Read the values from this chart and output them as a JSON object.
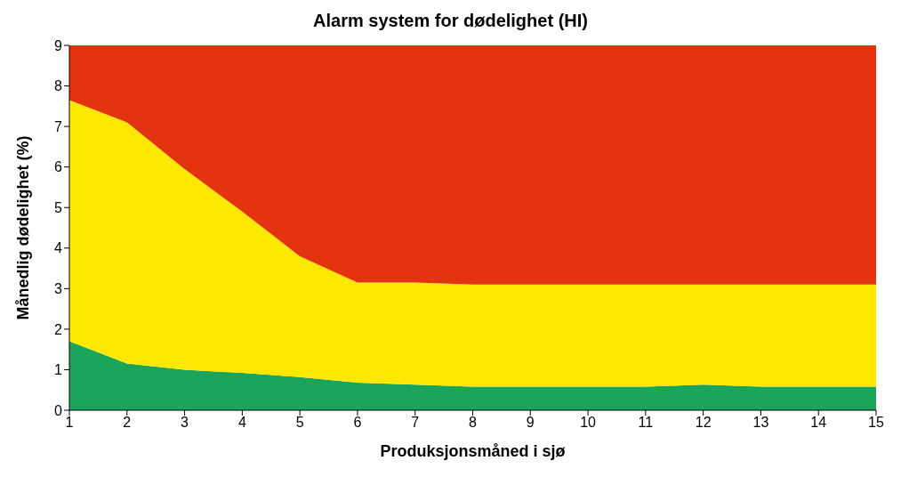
{
  "chart_data": {
    "type": "area",
    "title": "Alarm system for dødelighet (HI)",
    "xlabel": "Produksjonsmåned i sjø",
    "ylabel": "Månedlig dødelighet (%)",
    "x": [
      1,
      2,
      3,
      4,
      5,
      6,
      7,
      8,
      9,
      10,
      11,
      12,
      13,
      14,
      15
    ],
    "stacked": true,
    "series": [
      {
        "color": "#1aa55a",
        "values": [
          1.7,
          1.15,
          1.0,
          0.92,
          0.82,
          0.68,
          0.63,
          0.58,
          0.58,
          0.58,
          0.58,
          0.63,
          0.58,
          0.58,
          0.58
        ]
      },
      {
        "color": "#ffe800",
        "values": [
          5.95,
          5.95,
          4.95,
          3.98,
          2.98,
          2.47,
          2.52,
          2.52,
          2.52,
          2.52,
          2.52,
          2.47,
          2.52,
          2.52,
          2.52
        ]
      },
      {
        "color": "#e3340f",
        "values": [
          1.35,
          1.9,
          3.05,
          4.1,
          5.2,
          5.85,
          5.85,
          5.9,
          5.9,
          5.9,
          5.9,
          5.9,
          5.9,
          5.9,
          5.9
        ]
      }
    ],
    "xlim": [
      1,
      15
    ],
    "xticks": [
      1,
      2,
      3,
      4,
      5,
      6,
      7,
      8,
      9,
      10,
      11,
      12,
      13,
      14,
      15
    ],
    "ylim": [
      0,
      9
    ],
    "yticks": [
      0,
      1,
      2,
      3,
      4,
      5,
      6,
      7,
      8,
      9
    ],
    "grid": false,
    "legend": false
  }
}
